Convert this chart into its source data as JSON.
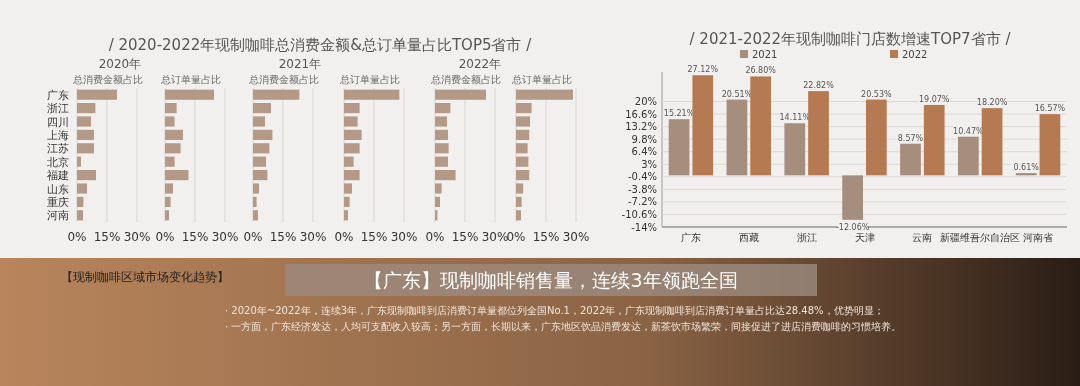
{
  "chart_data": [
    {
      "type": "bar",
      "orientation": "horizontal",
      "subtitle": "2020年",
      "title": "总消费金额占比",
      "annotations": [
        "/ 2020-2022年现制咖啡总消费金额&总订单量占比TOP5省市 /"
      ],
      "categories": [
        "广东",
        "浙江",
        "四川",
        "上海",
        "江苏",
        "北京",
        "福建",
        "山东",
        "重庆",
        "河南"
      ],
      "values": [
        20,
        9.2,
        7,
        8.5,
        8.5,
        2,
        9.5,
        5,
        3.2,
        3
      ],
      "color": "#b49a86",
      "xlim": [
        0,
        30
      ],
      "xticks": [
        {
          "value": 0,
          "label": "0%"
        },
        {
          "value": 15,
          "label": "15%"
        },
        {
          "value": 30,
          "label": "30%"
        }
      ],
      "grid": "x"
    },
    {
      "type": "bar",
      "orientation": "horizontal",
      "title": "总订单量占比",
      "categories": [
        null,
        null,
        null,
        null,
        null,
        null,
        null,
        null,
        null,
        null
      ],
      "values": [
        24.5,
        5.8,
        4.8,
        9,
        7.8,
        4.8,
        11.7,
        4,
        2.8,
        2
      ],
      "color": "#b49a86",
      "xlim": [
        0,
        30
      ],
      "xticks": [
        {
          "value": 0,
          "label": "0%"
        },
        {
          "value": 15,
          "label": "15%"
        },
        {
          "value": 30,
          "label": "30%"
        }
      ],
      "grid": "x",
      "tick_labels": "x"
    },
    {
      "type": "bar",
      "orientation": "horizontal",
      "subtitle": "2021年",
      "title": "总消费金额占比",
      "categories": [
        null,
        null,
        null,
        null,
        null,
        null,
        null,
        null,
        null,
        null
      ],
      "values": [
        23.2,
        9,
        6,
        9.7,
        8.2,
        6.5,
        7.2,
        3,
        1.8,
        2.5
      ],
      "color": "#b49a86",
      "xlim": [
        0,
        30
      ],
      "xticks": [
        {
          "value": 0,
          "label": "0%"
        },
        {
          "value": 15,
          "label": "15%"
        },
        {
          "value": 30,
          "label": "30%"
        }
      ],
      "grid": "x",
      "tick_labels": "x"
    },
    {
      "type": "bar",
      "orientation": "horizontal",
      "title": "总订单量占比",
      "categories": [
        null,
        null,
        null,
        null,
        null,
        null,
        null,
        null,
        null,
        null
      ],
      "values": [
        27.7,
        7.8,
        6.8,
        8.8,
        7.8,
        4.8,
        7.8,
        4,
        2.8,
        2
      ],
      "color": "#b49a86",
      "xlim": [
        0,
        30
      ],
      "xticks": [
        {
          "value": 0,
          "label": "0%"
        },
        {
          "value": 15,
          "label": "15%"
        },
        {
          "value": 30,
          "label": "30%"
        }
      ],
      "grid": "x",
      "tick_labels": "x"
    },
    {
      "type": "bar",
      "orientation": "horizontal",
      "subtitle": "2022年",
      "title": "总消费金额占比",
      "categories": [
        null,
        null,
        null,
        null,
        null,
        null,
        null,
        null,
        null,
        null
      ],
      "values": [
        25.5,
        7.7,
        6,
        6.5,
        6.8,
        6.5,
        10.3,
        3.3,
        2.5,
        1.2
      ],
      "color": "#b49a86",
      "xlim": [
        0,
        30
      ],
      "xticks": [
        {
          "value": 0,
          "label": "0%"
        },
        {
          "value": 15,
          "label": "15%"
        },
        {
          "value": 30,
          "label": "30%"
        }
      ],
      "grid": "x",
      "tick_labels": "x"
    },
    {
      "type": "bar",
      "orientation": "horizontal",
      "title": "总订单量占比",
      "categories": [
        null,
        null,
        null,
        null,
        null,
        null,
        null,
        null,
        null,
        null
      ],
      "values": [
        28.5,
        7.8,
        7,
        6.6,
        5.8,
        6.2,
        6.6,
        3.6,
        2.8,
        2.5
      ],
      "color": "#b49a86",
      "xlim": [
        0,
        30
      ],
      "xticks": [
        {
          "value": 0,
          "label": "0%"
        },
        {
          "value": 15,
          "label": "15%"
        },
        {
          "value": 30,
          "label": "30%"
        }
      ],
      "grid": "x",
      "tick_labels": "x"
    },
    {
      "type": "bar",
      "title": "/ 2021-2022年现制咖啡门店数增速TOP7省市 /",
      "categories": [
        "广东",
        "西藏",
        "浙江",
        "天津",
        "云南",
        "新疆维吾尔自治区",
        "河南省"
      ],
      "series": [
        {
          "name": "2021",
          "color": "#a58e7e",
          "values": [
            15.21,
            20.51,
            14.11,
            -12.06,
            8.57,
            10.47,
            0.61
          ],
          "value_labels": [
            "15.21%",
            "20.51%",
            "14.11%",
            "-12.06%",
            "8.57%",
            "10.47%",
            "0.61%"
          ]
        },
        {
          "name": "2022",
          "color": "#b57a52",
          "values": [
            27.12,
            26.8,
            22.82,
            20.53,
            19.07,
            18.2,
            16.57
          ],
          "value_labels": [
            "27.12%",
            "26.80%",
            "22.82%",
            "20.53%",
            "19.07%",
            "18.20%",
            "16.57%"
          ]
        }
      ],
      "ylim": [
        -14,
        28
      ],
      "yticks": [
        {
          "value": 20,
          "label": "20%"
        },
        {
          "value": 16.6,
          "label": "16.6%"
        },
        {
          "value": 13.2,
          "label": "13.2%"
        },
        {
          "value": 9.8,
          "label": "9.8%"
        },
        {
          "value": 6.4,
          "label": "6.4%"
        },
        {
          "value": 3,
          "label": "3%"
        },
        {
          "value": -0.4,
          "label": "-0.4%"
        },
        {
          "value": -3.8,
          "label": "-3.8%"
        },
        {
          "value": -7.2,
          "label": "-7.2%"
        },
        {
          "value": -10.6,
          "label": "-10.6%"
        },
        {
          "value": -14,
          "label": "-14%"
        }
      ],
      "grid": "y",
      "legend": "top"
    },
    {
      "type": "other",
      "subtitle": "【现制咖啡区域市场变化趋势】",
      "title": "【广东】现制咖啡销售量，连续3年领跑全国",
      "annotations": [
        "· 2020年~2022年，连续3年，广东现制咖啡到店消费订单量都位列全国No.1，2022年，广东现制咖啡到店消费订单量占比达28.48%，优势明显；",
        "· 一方面，广东经济发达，人均可支配收入较高；另一方面，长期以来，广东地区饮品消费发达，新茶饮市场繁荣，间接促进了进店消费咖啡的习惯培养。"
      ]
    }
  ]
}
